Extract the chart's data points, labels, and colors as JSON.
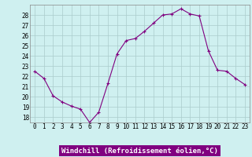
{
  "x": [
    0,
    1,
    2,
    3,
    4,
    5,
    6,
    7,
    8,
    9,
    10,
    11,
    12,
    13,
    14,
    15,
    16,
    17,
    18,
    19,
    20,
    21,
    22,
    23
  ],
  "y": [
    22.5,
    21.8,
    20.1,
    19.5,
    19.1,
    18.8,
    17.5,
    18.5,
    21.3,
    24.2,
    25.5,
    25.7,
    26.4,
    27.2,
    28.0,
    28.1,
    28.6,
    28.1,
    27.9,
    24.5,
    22.6,
    22.5,
    21.8,
    21.2
  ],
  "line_color": "#800080",
  "marker": "+",
  "marker_size": 3,
  "bg_color": "#cff0f0",
  "grid_color": "#aacccc",
  "xlabel": "Windchill (Refroidissement éolien,°C)",
  "xlabel_color": "#ffffff",
  "xlabel_bg": "#800080",
  "ylabel_ticks": [
    18,
    19,
    20,
    21,
    22,
    23,
    24,
    25,
    26,
    27,
    28
  ],
  "ylim": [
    17.5,
    29.0
  ],
  "xlim": [
    -0.5,
    23.5
  ],
  "tick_fontsize": 5.5,
  "label_fontsize": 6.5
}
